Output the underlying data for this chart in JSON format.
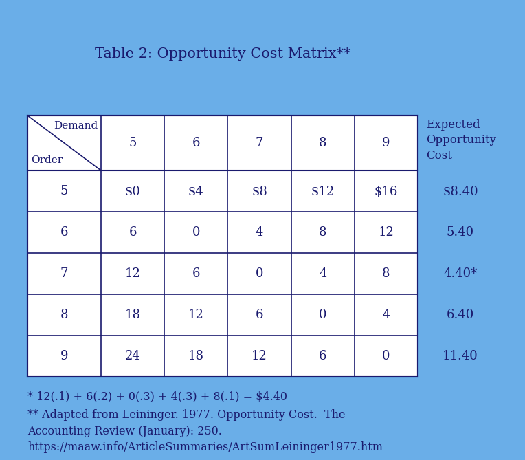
{
  "title": "Table 2: Opportunity Cost Matrix**",
  "background_color": "#6aaee8",
  "table_bg": "#ffffff",
  "text_color": "#1a1a6e",
  "demand_labels": [
    "5",
    "6",
    "7",
    "8",
    "9"
  ],
  "order_labels": [
    "5",
    "6",
    "7",
    "8",
    "9"
  ],
  "matrix": [
    [
      "$0",
      "$4",
      "$8",
      "$12",
      "$16"
    ],
    [
      "6",
      "0",
      "4",
      "8",
      "12"
    ],
    [
      "12",
      "6",
      "0",
      "4",
      "8"
    ],
    [
      "18",
      "12",
      "6",
      "0",
      "4"
    ],
    [
      "24",
      "18",
      "12",
      "6",
      "0"
    ]
  ],
  "expected_costs": [
    "$8.40",
    "5.40",
    "4.40*",
    "6.40",
    "11.40"
  ],
  "header_label1": "Demand",
  "header_label2": "Order",
  "expected_header": "Expected\nOpportunity\nCost",
  "footnote1": "* 12(.1) + 6(.2) + 0(.3) + 4(.3) + 8(.1) = $4.40",
  "footnote2": "** Adapted from Leininger. 1977. Opportunity Cost.  The\nAccounting Review (January): 250.\nhttps://maaw.info/ArticleSummaries/ArtSumLeininger1977.htm",
  "title_fontsize": 15,
  "cell_fontsize": 13,
  "header_fontsize": 11,
  "footnote_fontsize": 11.5,
  "footnote2_fontsize": 11.5
}
